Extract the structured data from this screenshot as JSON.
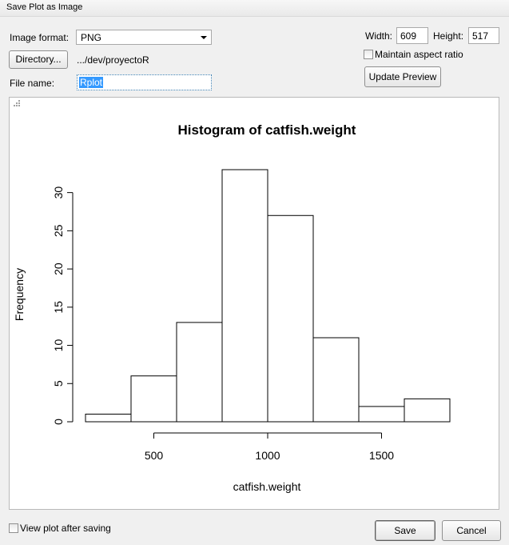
{
  "window": {
    "title": "Save Plot as Image"
  },
  "form": {
    "image_format_label": "Image format:",
    "image_format_value": "PNG",
    "directory_button": "Directory...",
    "directory_path": ".../dev/proyectoR",
    "file_name_label": "File name:",
    "file_name_value": "Rplot",
    "width_label": "Width:",
    "width_value": "609",
    "height_label": "Height:",
    "height_value": "517",
    "maintain_aspect_label": "Maintain aspect ratio",
    "maintain_aspect_checked": false,
    "update_preview_button": "Update Preview"
  },
  "footer": {
    "view_after_saving_label": "View plot after saving",
    "view_after_saving_checked": false,
    "save_button": "Save",
    "cancel_button": "Cancel"
  },
  "chart_data": {
    "type": "bar",
    "title": "Histogram of catfish.weight",
    "xlabel": "catfish.weight",
    "ylabel": "Frequency",
    "bin_edges": [
      200,
      400,
      600,
      800,
      1000,
      1200,
      1400,
      1600,
      1800
    ],
    "values": [
      1,
      6,
      13,
      33,
      27,
      11,
      2,
      3
    ],
    "x_ticks": [
      500,
      1000,
      1500
    ],
    "y_ticks": [
      0,
      5,
      10,
      15,
      20,
      25,
      30
    ],
    "xlim": [
      200,
      1800
    ],
    "ylim": [
      0,
      33
    ],
    "grid": false
  }
}
